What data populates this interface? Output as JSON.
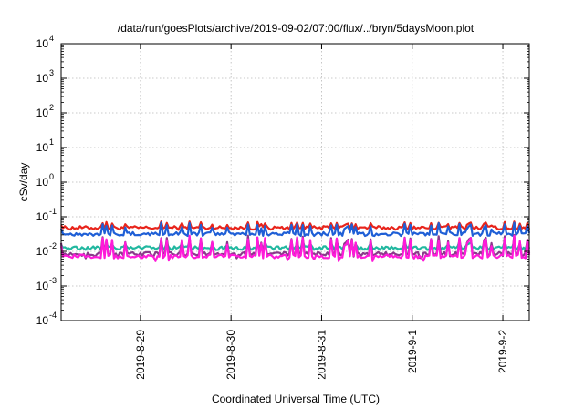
{
  "chart_data": {
    "type": "line",
    "title": "/data/run/goesPlots/archive/2019-09-02/07:00/flux/../bryn/5daysMoon.plot",
    "xlabel": "Coordinated Universal Time (UTC)",
    "ylabel": "cSv/day",
    "yscale": "log",
    "ylim": [
      0.0001,
      10000
    ],
    "yticks": [
      {
        "base": "10",
        "exp": "4",
        "value": 10000
      },
      {
        "base": "10",
        "exp": "3",
        "value": 1000
      },
      {
        "base": "10",
        "exp": "2",
        "value": 100
      },
      {
        "base": "10",
        "exp": "1",
        "value": 10
      },
      {
        "base": "10",
        "exp": "0",
        "value": 1
      },
      {
        "base": "10",
        "exp": "-1",
        "value": 0.1
      },
      {
        "base": "10",
        "exp": "-2",
        "value": 0.01
      },
      {
        "base": "10",
        "exp": "-3",
        "value": 0.001
      },
      {
        "base": "10",
        "exp": "-4",
        "value": 0.0001
      }
    ],
    "xlim": [
      "2019-08-28 03:00",
      "2019-09-02 07:00"
    ],
    "xticks": [
      {
        "label": "2019-8-29",
        "date": "2019-08-29"
      },
      {
        "label": "2019-8-30",
        "date": "2019-08-30"
      },
      {
        "label": "2019-8-31",
        "date": "2019-08-31"
      },
      {
        "label": "2019-9-1",
        "date": "2019-09-01"
      },
      {
        "label": "2019-9-2",
        "date": "2019-09-02"
      }
    ],
    "grid": true,
    "legend": "none",
    "series": [
      {
        "color": "#e8241b",
        "base": 0.048,
        "peak": 0.075
      },
      {
        "color": "#1f5fd6",
        "base": 0.032,
        "peak": 0.07
      },
      {
        "color": "#22b8a0",
        "base": 0.0125,
        "peak": 0.02
      },
      {
        "color": "#8a3a8a",
        "base": 0.0085,
        "peak": 0.03
      },
      {
        "color": "#ff1ad9",
        "base": 0.0072,
        "peak": 0.03
      }
    ]
  }
}
